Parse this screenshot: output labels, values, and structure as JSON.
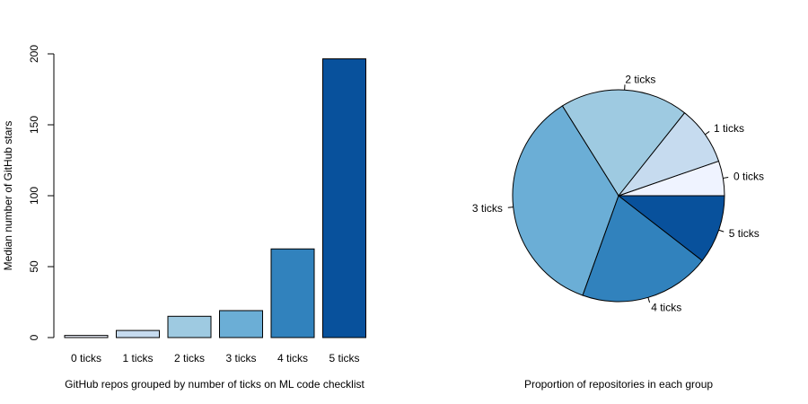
{
  "chart_data": [
    {
      "type": "bar",
      "categories": [
        "0 ticks",
        "1 ticks",
        "2 ticks",
        "3 ticks",
        "4 ticks",
        "5 ticks"
      ],
      "values": [
        1.5,
        5,
        15,
        19,
        62.5,
        196.5
      ],
      "colors": [
        "#eff3ff",
        "#c6dbef",
        "#9ecae1",
        "#6baed6",
        "#3182bd",
        "#08519c"
      ],
      "title": "",
      "xlabel": "GitHub repos grouped by number of ticks on ML code checklist",
      "ylabel": "Median number of GitHub stars",
      "ylim": [
        0,
        200
      ],
      "yticks": [
        "0",
        "50",
        "100",
        "150",
        "200"
      ],
      "grid": false
    },
    {
      "type": "pie",
      "labels": [
        "0 ticks",
        "1 ticks",
        "2 ticks",
        "3 ticks",
        "4 ticks",
        "5 ticks"
      ],
      "values": [
        0.053,
        0.09,
        0.196,
        0.356,
        0.2,
        0.105
      ],
      "colors": [
        "#eff3ff",
        "#c6dbef",
        "#9ecae1",
        "#6baed6",
        "#3182bd",
        "#08519c"
      ],
      "title": "",
      "xlabel": "Proportion of repositories in each group"
    }
  ]
}
